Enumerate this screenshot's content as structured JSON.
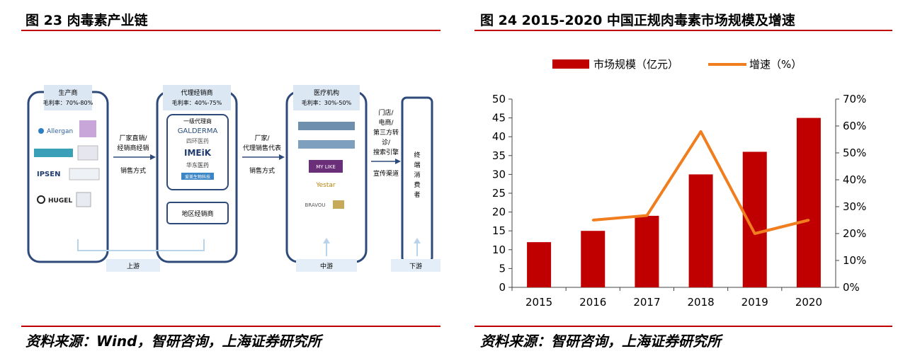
{
  "fig23": {
    "title": "图 23 肉毒素产业链",
    "source": "资料来源：Wind，智研咨询，上海证券研究所",
    "producer": {
      "title": "生产商",
      "margin": "毛利率：70%-80%",
      "logos": [
        "Allergan",
        "IPSEN",
        "HUGEL"
      ]
    },
    "arrow1": {
      "line1": "厂家直销/",
      "line2": "经销商经销",
      "method": "销售方式"
    },
    "agent": {
      "title": "代理经销商",
      "margin": "毛利率：40%-75%",
      "first_level": "一级代理商",
      "logos": [
        "GALDERMA",
        "四环医药",
        "IMEiK",
        "华东医药",
        "爱美生物科技"
      ],
      "regional": "地区经销商"
    },
    "arrow2": {
      "line1": "厂家/",
      "line2": "代理销售代表",
      "method": "销售方式"
    },
    "medical": {
      "title": "医疗机构",
      "margin": "毛利率：30%-50%",
      "logos": [
        "MY LIKE",
        "Yestar",
        "BRAVOU"
      ]
    },
    "arrow3": {
      "lines": [
        "门店/",
        "电商/",
        "第三方转",
        "诊/",
        "搜索引擎"
      ],
      "method": "宣传渠道"
    },
    "consumer": {
      "label_chars": [
        "终",
        "端",
        "消",
        "费",
        "者"
      ]
    },
    "stages": {
      "upstream": "上游",
      "midstream": "中游",
      "downstream": "下游"
    },
    "colors": {
      "box_border": "#2e4a7a",
      "header_fill": "#dbe7f3",
      "stage_fill": "#e4eef8",
      "bracket": "#b8d4ea"
    }
  },
  "fig24": {
    "title": "图 24 2015-2020 中国正规肉毒素市场规模及增速",
    "source": "资料来源：智研咨询，上海证券研究所",
    "chart_data": {
      "type": "bar",
      "categories": [
        "2015",
        "2016",
        "2017",
        "2018",
        "2019",
        "2020"
      ],
      "series": [
        {
          "name": "市场规模（亿元）",
          "type": "bar",
          "axis": "left",
          "values": [
            12,
            15,
            19,
            30,
            36,
            45
          ],
          "color": "#c00000"
        },
        {
          "name": "增速（%）",
          "type": "line",
          "axis": "right",
          "values": [
            null,
            25,
            26.7,
            57.9,
            20,
            25
          ],
          "color": "#f07d1e"
        }
      ],
      "left_axis": {
        "ylim": [
          0,
          50
        ],
        "ticks": [
          "0",
          "5",
          "10",
          "15",
          "20",
          "25",
          "30",
          "35",
          "40",
          "45",
          "50"
        ]
      },
      "right_axis": {
        "ylim": [
          0,
          70
        ],
        "ticks": [
          "0%",
          "10%",
          "20%",
          "30%",
          "40%",
          "50%",
          "60%",
          "70%"
        ]
      },
      "legend": "top",
      "grid": false
    }
  },
  "colors": {
    "accent": "#c00000"
  }
}
